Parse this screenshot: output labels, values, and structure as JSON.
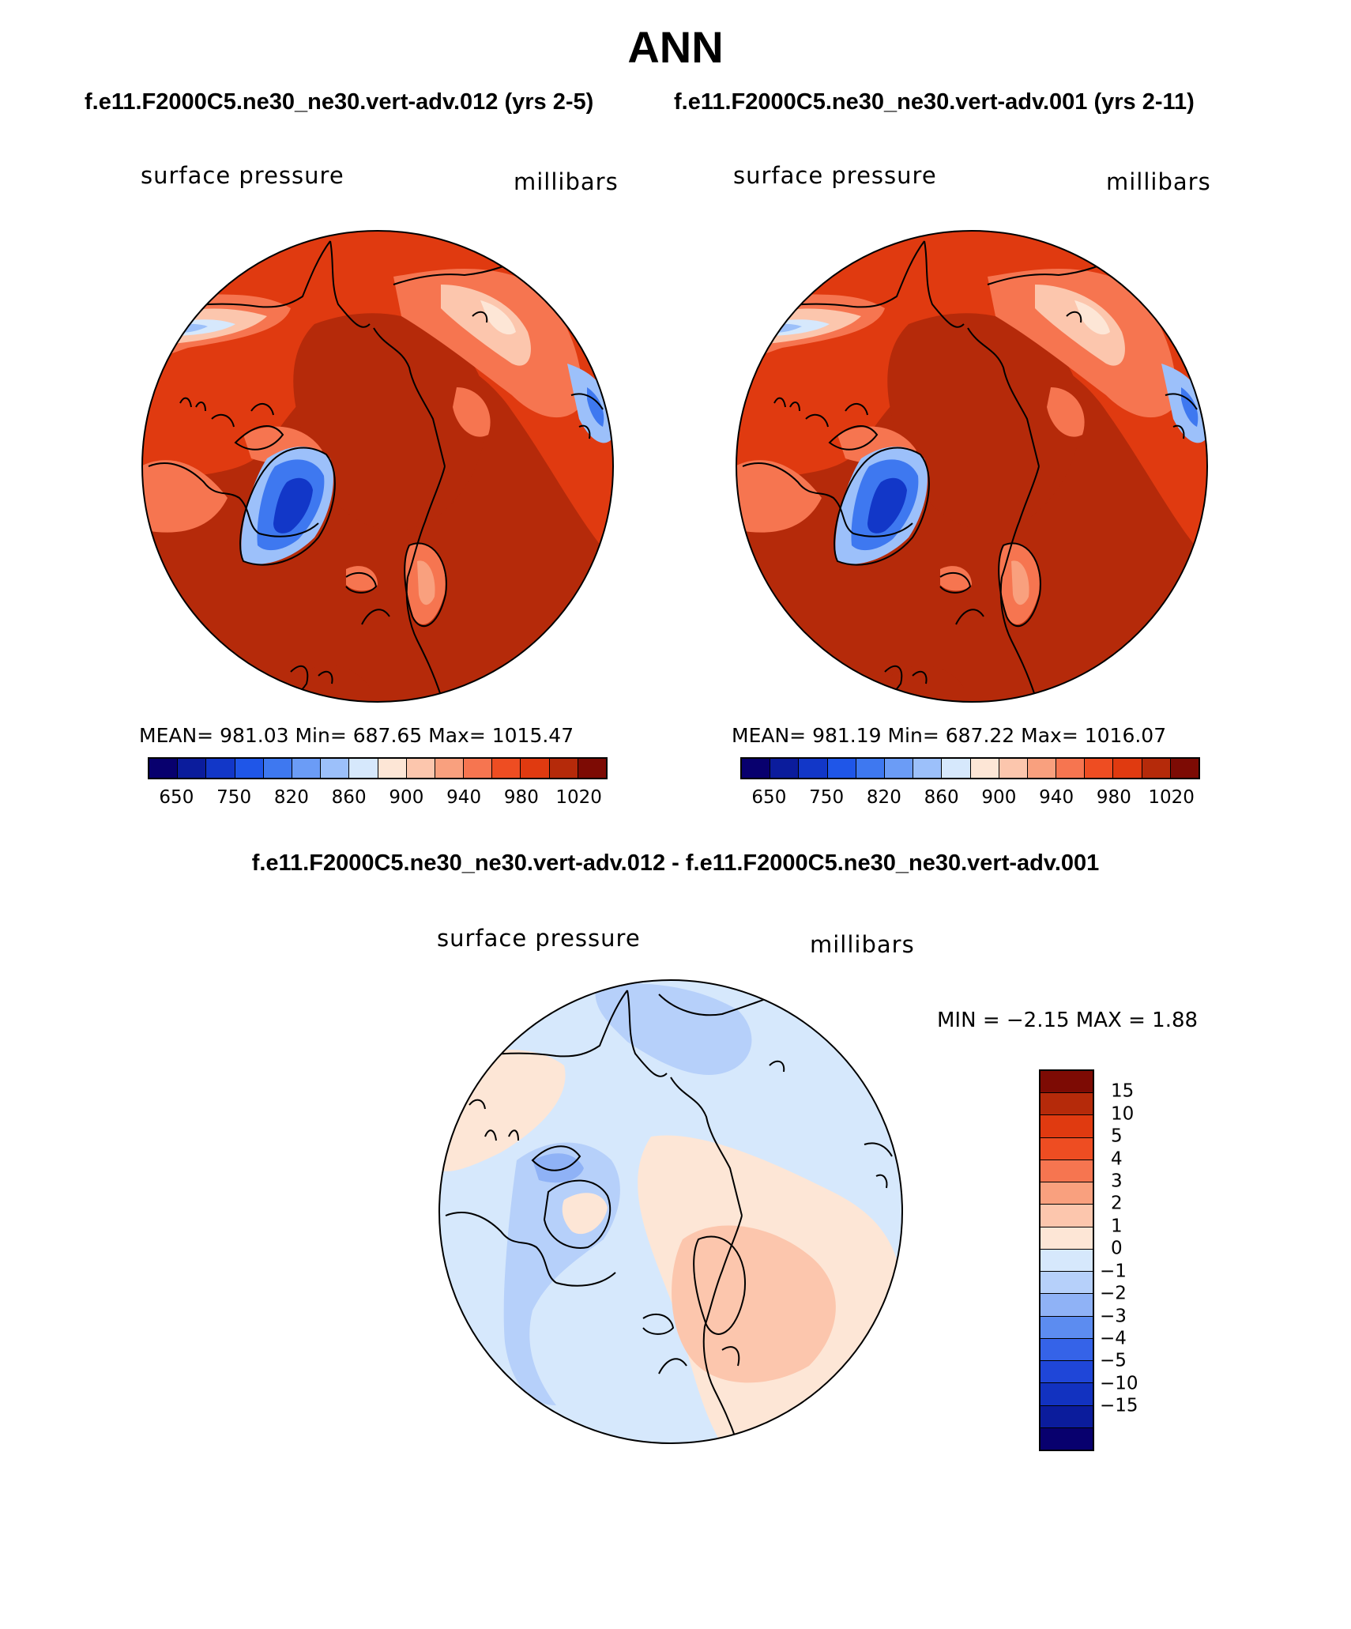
{
  "page_title": "ANN",
  "panels": [
    {
      "case_title": "f.e11.F2000C5.ne30_ne30.vert-adv.012 (yrs 2-5)",
      "variable": "surface pressure",
      "units": "millibars",
      "stats_text": "MEAN= 981.03   Min= 687.65   Max= 1015.47"
    },
    {
      "case_title": "f.e11.F2000C5.ne30_ne30.vert-adv.001 (yrs 2-11)",
      "variable": "surface pressure",
      "units": "millibars",
      "stats_text": "MEAN= 981.19   Min= 687.22   Max= 1016.07"
    }
  ],
  "abs_colorbar": {
    "colors": [
      "#08006e",
      "#0b1c9c",
      "#1237c8",
      "#1f56e8",
      "#3e78f0",
      "#6b9cf6",
      "#9cc0fa",
      "#d6e8fc",
      "#fde6d6",
      "#fcc6ad",
      "#f9a07e",
      "#f67550",
      "#ee4d22",
      "#e03a10",
      "#b52a0a",
      "#7d0b04"
    ],
    "tick_labels": [
      "650",
      "750",
      "820",
      "860",
      "900",
      "940",
      "980",
      "1020"
    ]
  },
  "diff_panel": {
    "title": "f.e11.F2000C5.ne30_ne30.vert-adv.012 - f.e11.F2000C5.ne30_ne30.vert-adv.001",
    "variable": "surface pressure",
    "units": "millibars",
    "minmax_text": "MIN =   −2.15  MAX =     1.88"
  },
  "diff_colorbar": {
    "colors": [
      "#7d0b04",
      "#b52a0a",
      "#e03a10",
      "#ee4d22",
      "#f67550",
      "#f9a07e",
      "#fcc6ad",
      "#fde6d6",
      "#d6e8fc",
      "#b6d0fa",
      "#8fb2f6",
      "#5c8cf0",
      "#3563e8",
      "#1f46d8",
      "#1232c0",
      "#0b1c9c",
      "#08006e"
    ],
    "tick_labels": [
      "15",
      "10",
      "5",
      "4",
      "3",
      "2",
      "1",
      "0",
      "−1",
      "−2",
      "−3",
      "−4",
      "−5",
      "−10",
      "−15"
    ]
  }
}
